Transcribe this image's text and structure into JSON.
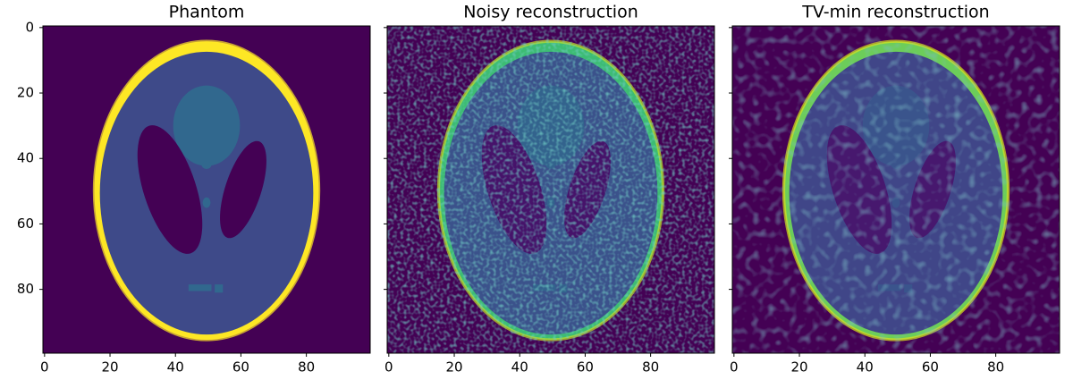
{
  "chart_data": [
    {
      "type": "image",
      "title": "Phantom",
      "xlim": [
        -0.5,
        99.5
      ],
      "ylim": [
        99.5,
        -0.5
      ],
      "xticks": [
        0,
        20,
        40,
        60,
        80
      ],
      "yticks": [
        0,
        20,
        40,
        60,
        80
      ],
      "show_ytick_labels": true
    },
    {
      "type": "image",
      "title": "Noisy reconstruction",
      "xlim": [
        -0.5,
        99.5
      ],
      "ylim": [
        99.5,
        -0.5
      ],
      "xticks": [
        0,
        20,
        40,
        60,
        80
      ],
      "yticks": [
        0,
        20,
        40,
        60,
        80
      ],
      "show_ytick_labels": false
    },
    {
      "type": "image",
      "title": "TV-min reconstruction",
      "xlim": [
        -0.5,
        99.5
      ],
      "ylim": [
        99.5,
        -0.5
      ],
      "xticks": [
        0,
        20,
        40,
        60,
        80
      ],
      "yticks": [
        0,
        20,
        40,
        60,
        80
      ],
      "show_ytick_labels": false
    }
  ]
}
